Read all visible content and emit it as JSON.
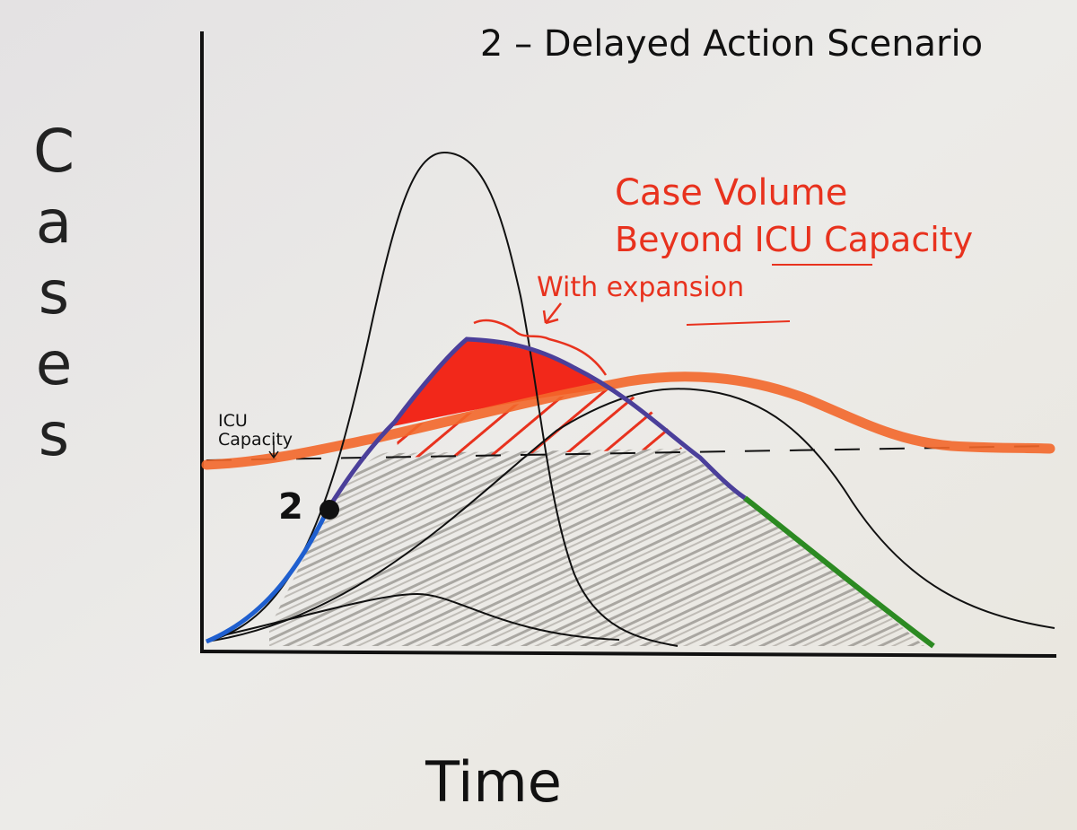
{
  "title": "2 – Delayed Action Scenario",
  "axes": {
    "y_label": "Cases",
    "x_label": "Time"
  },
  "annotations": {
    "excess": [
      "Case Volume",
      "Beyond ICU Capacity"
    ],
    "expansion": "With expansion",
    "icu_capacity": [
      "ICU",
      "Capacity"
    ],
    "point": "2"
  }
}
